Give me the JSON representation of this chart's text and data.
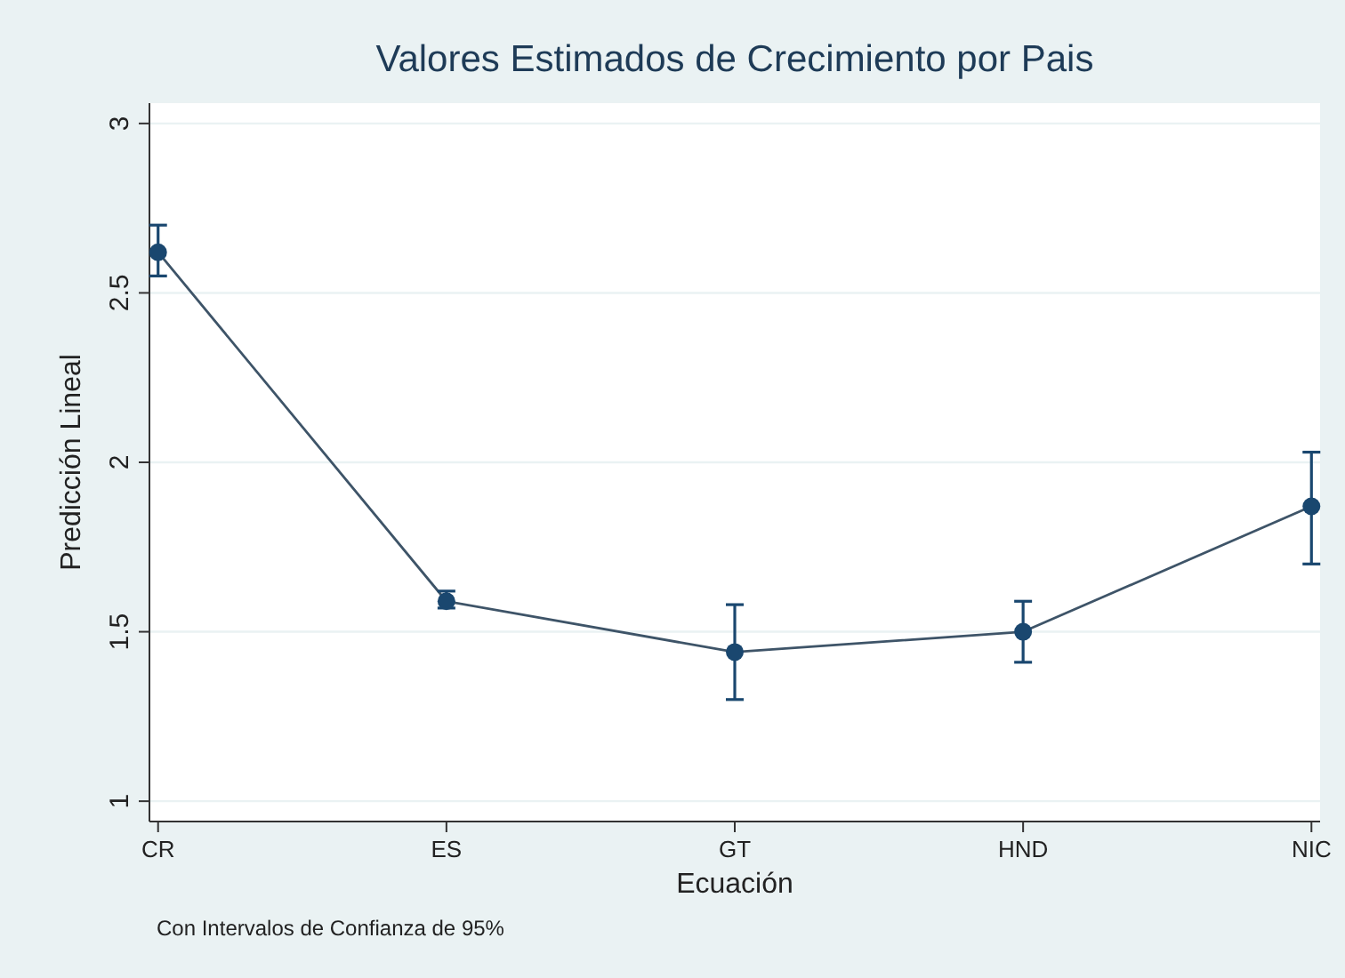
{
  "chart_data": {
    "type": "line",
    "title": "Valores Estimados de Crecimiento por Pais",
    "xlabel": "Ecuación",
    "ylabel": "Predicción Lineal",
    "categories": [
      "CR",
      "ES",
      "GT",
      "HND",
      "NIC"
    ],
    "series": [
      {
        "color": "#1a476f",
        "values": [
          2.62,
          1.59,
          1.44,
          1.5,
          1.87
        ],
        "errors": [
          [
            2.55,
            2.7
          ],
          [
            1.57,
            1.62
          ],
          [
            1.3,
            1.58
          ],
          [
            1.41,
            1.59
          ],
          [
            1.7,
            2.03
          ]
        ]
      }
    ],
    "ylim": [
      0.94,
      3.06
    ],
    "yticks": [
      1,
      1.5,
      2,
      2.5,
      3
    ],
    "grid": "y",
    "marker": "circle",
    "line_style": "solid",
    "annotations": [
      "Con Intervalos de Confianza de 95%"
    ]
  }
}
